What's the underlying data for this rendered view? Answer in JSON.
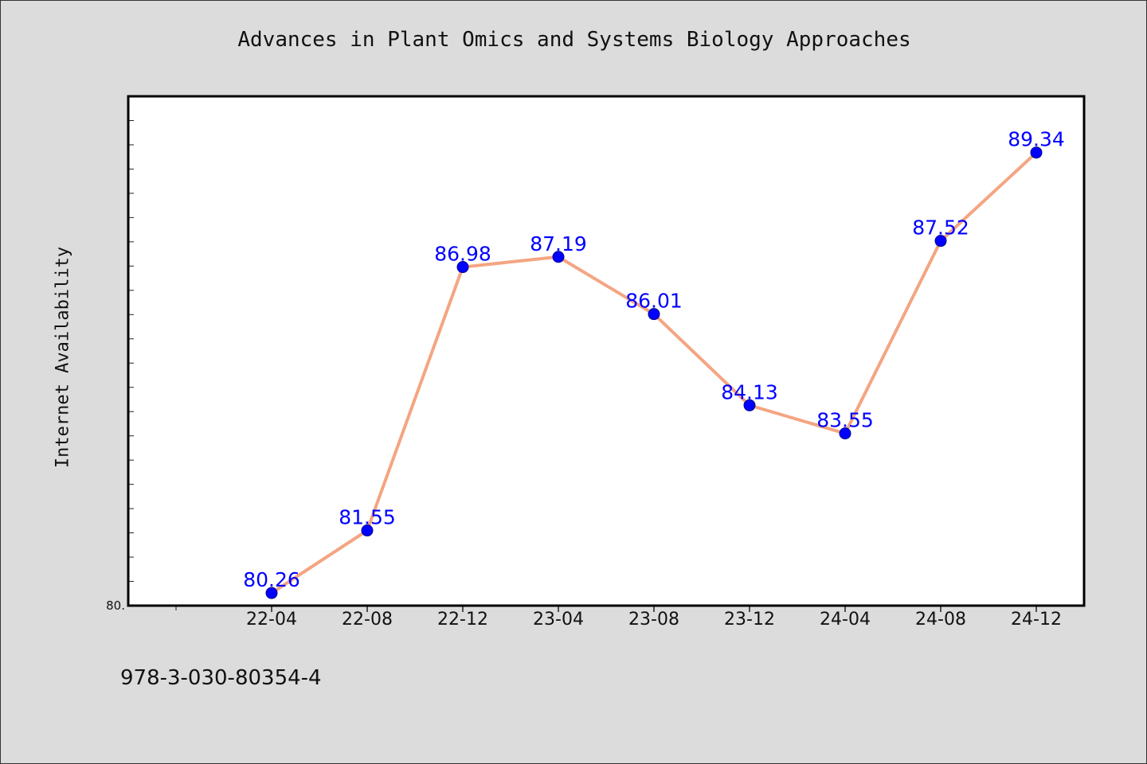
{
  "chart_data": {
    "type": "line",
    "title": "Advances in Plant Omics and Systems Biology Approaches",
    "xlabel": "",
    "ylabel": "Internet Availability",
    "categories": [
      "22-04",
      "22-08",
      "22-12",
      "23-04",
      "23-08",
      "23-12",
      "24-04",
      "24-08",
      "24-12"
    ],
    "series": [
      {
        "values": [
          80.26,
          81.55,
          86.98,
          87.19,
          86.01,
          84.13,
          83.55,
          87.52,
          89.34
        ],
        "labels": [
          "80.26",
          "81.55",
          "86.98",
          "87.19",
          "86.01",
          "84.13",
          "83.55",
          "87.52",
          "89.34"
        ],
        "line_color": "#f4a582",
        "marker_color": "#0000ff"
      }
    ],
    "ylim": [
      80.0,
      90.5
    ],
    "ytick_labels": [
      "80."
    ],
    "grid": false,
    "legend": "none"
  },
  "footer": {
    "isbn": "978-3-030-80354-4"
  }
}
